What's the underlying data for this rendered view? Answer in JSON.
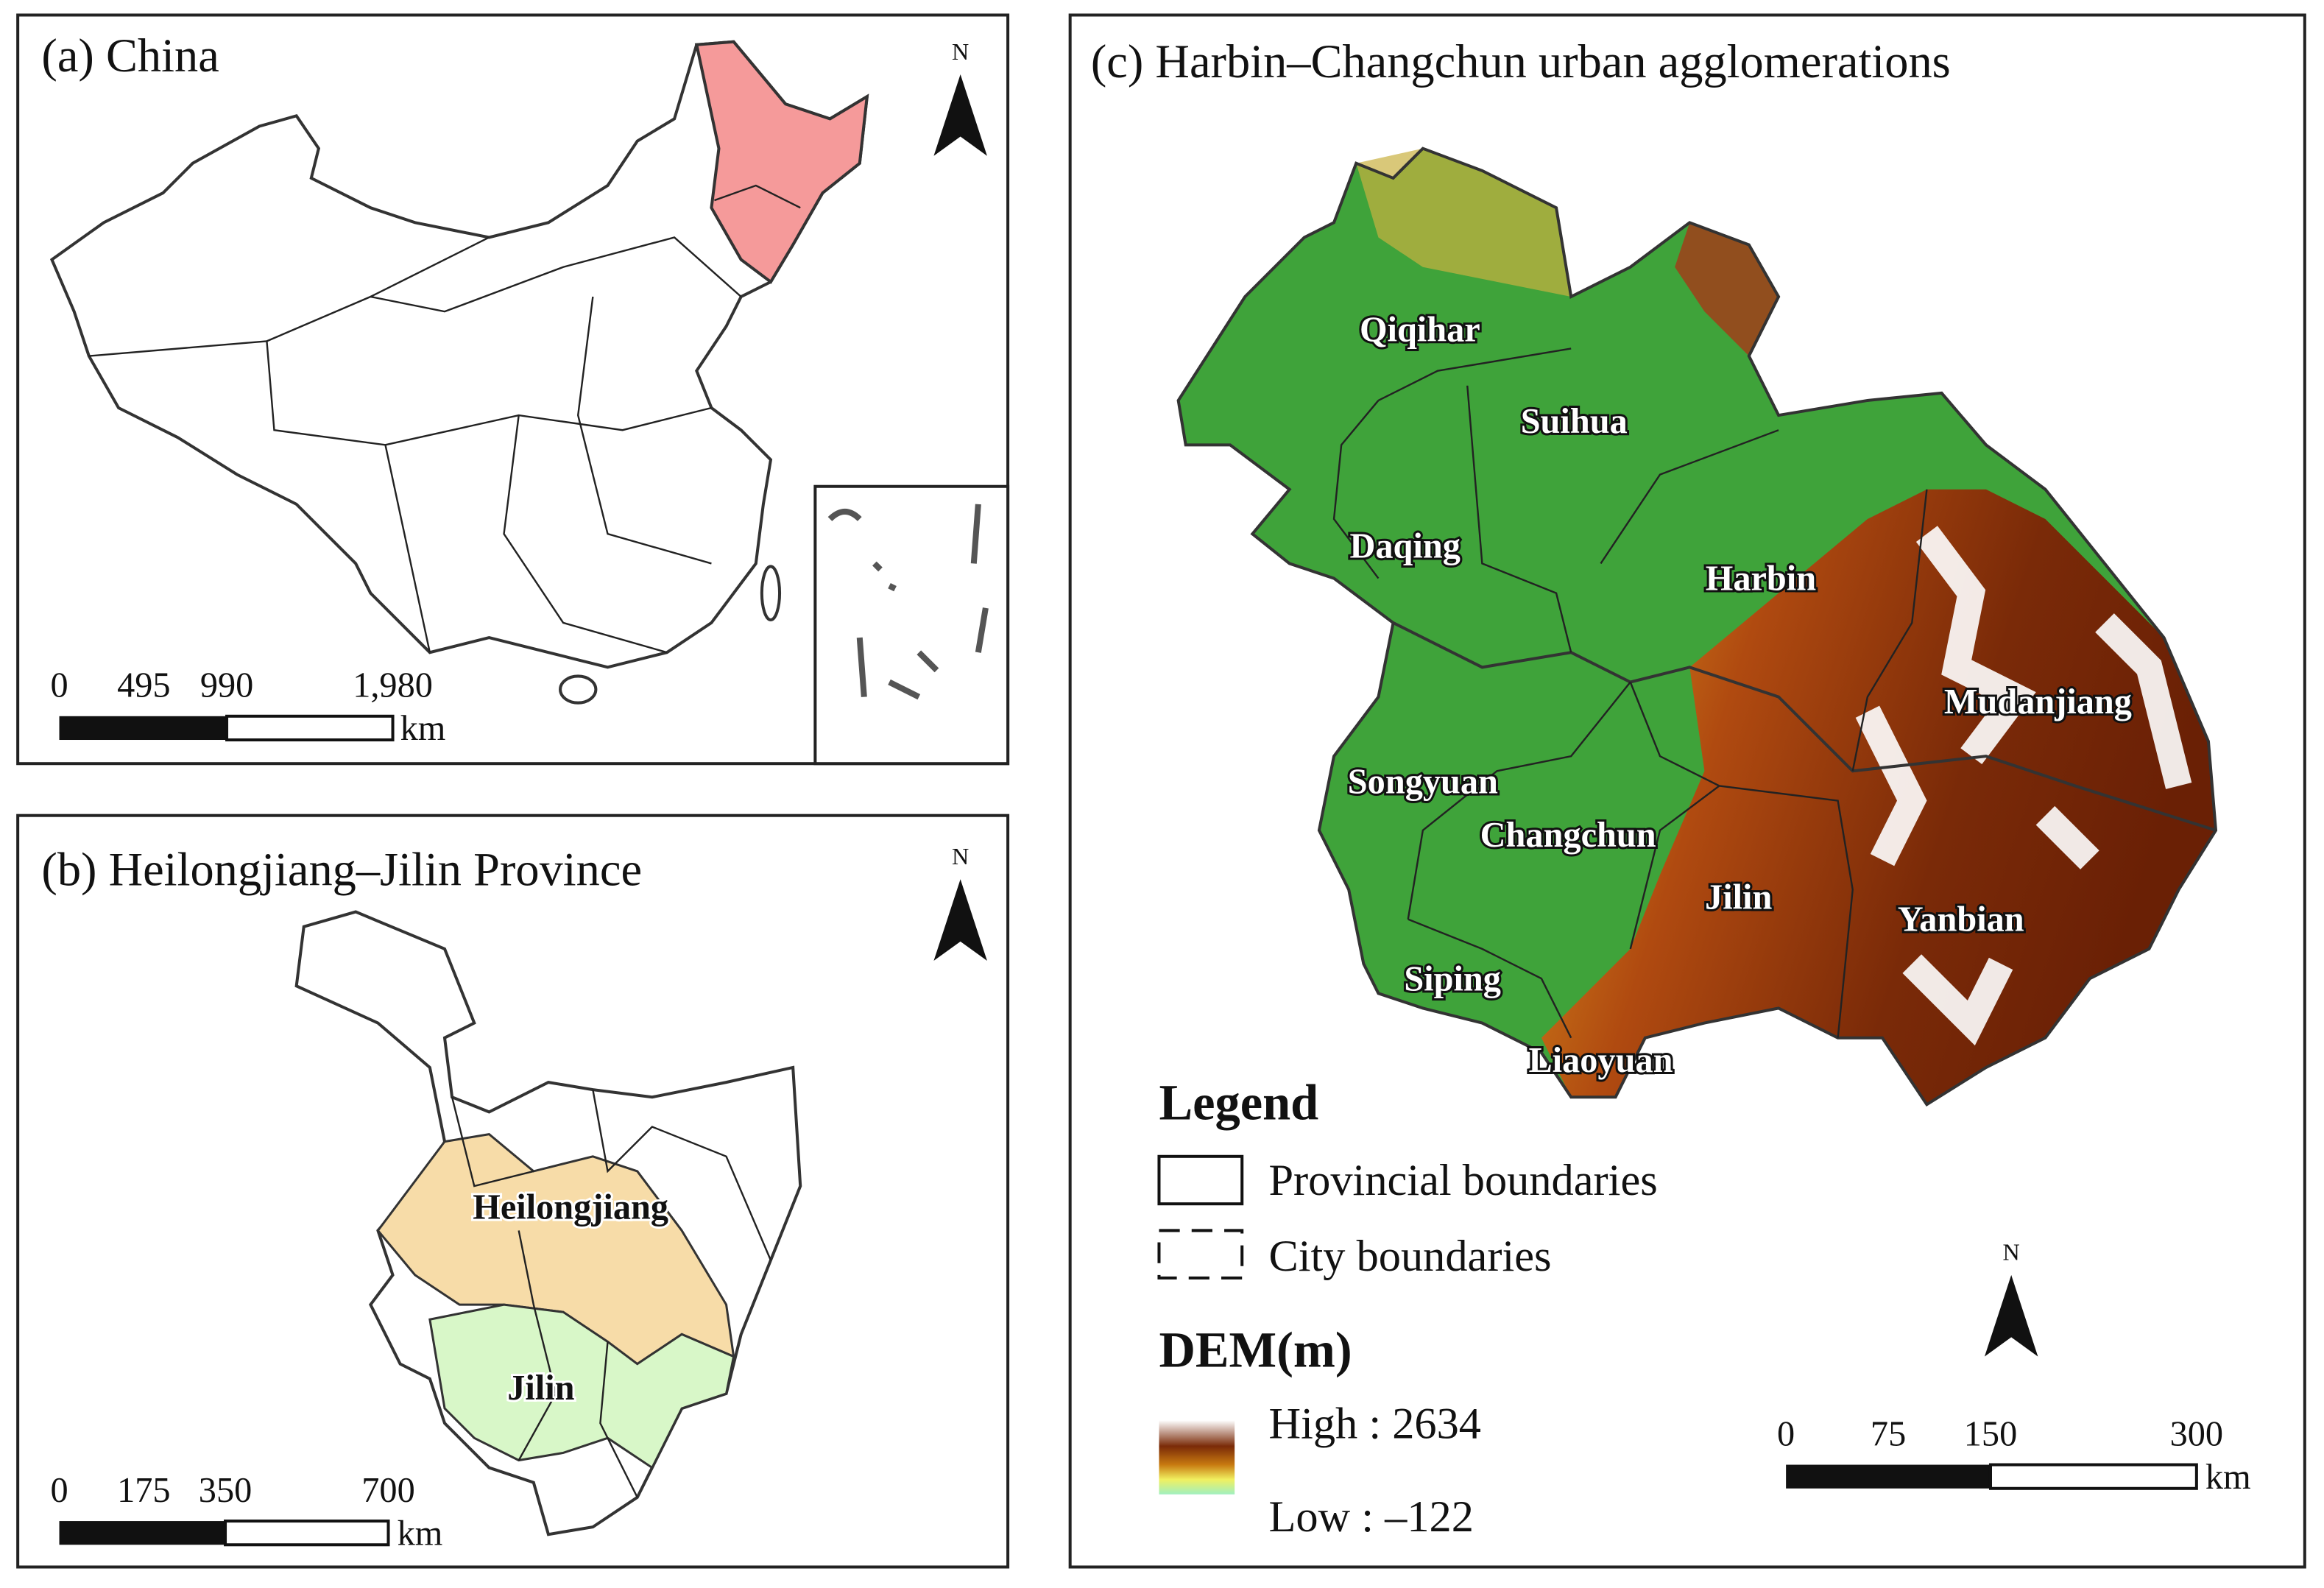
{
  "panels": [
    {
      "title": "(a) China",
      "north": "N",
      "scale_labels": [
        "0",
        "495",
        "990",
        "1,980"
      ],
      "scale_unit": "km"
    },
    {
      "title": "(b) Heilongjiang–Jilin Province",
      "north": "N",
      "labels": [
        "Heilongjiang",
        "Jilin"
      ],
      "scale_labels": [
        "0",
        "175",
        "350",
        "700"
      ],
      "scale_unit": "km"
    },
    {
      "title": "(c) Harbin–Changchun urban agglomerations",
      "north": "N",
      "labels": [
        "Qiqihar",
        "Suihua",
        "Daqing",
        "Harbin",
        "Mudanjiang",
        "Songyuan",
        "Changchun",
        "Jilin",
        "Yanbian",
        "Siping",
        "Liaoyuan"
      ],
      "legend": {
        "title": "Legend",
        "items": [
          "Provincial boundaries",
          "City boundaries"
        ],
        "dem_title": "DEM(m)",
        "high": "High : 2634",
        "low": "Low : –122"
      },
      "scale_labels": [
        "0",
        "75",
        "150",
        "300"
      ],
      "scale_unit": "km"
    }
  ]
}
